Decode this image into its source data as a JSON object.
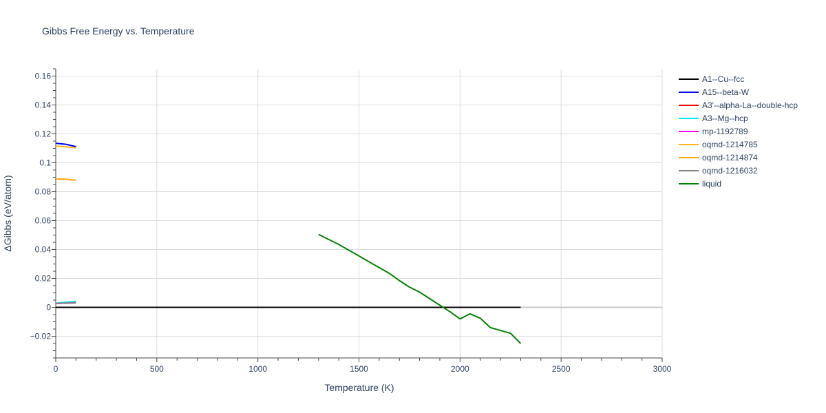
{
  "chart_data": {
    "type": "line",
    "title": "Gibbs Free Energy vs. Temperature",
    "xlabel": "Temperature (K)",
    "ylabel": "ΔGibbs (eV/atom)",
    "xlim": [
      0,
      3000
    ],
    "ylim": [
      -0.035,
      0.165
    ],
    "x_ticks": [
      0,
      500,
      1000,
      1500,
      2000,
      2500,
      3000
    ],
    "x_tick_labels": [
      "0",
      "500",
      "1000",
      "1500",
      "2000",
      "2500",
      "3000"
    ],
    "y_ticks": [
      -0.02,
      0,
      0.02,
      0.04,
      0.06,
      0.08,
      0.1,
      0.12,
      0.14,
      0.16
    ],
    "y_tick_labels": [
      "−0.02",
      "0",
      "0.02",
      "0.04",
      "0.06",
      "0.08",
      "0.1",
      "0.12",
      "0.14",
      "0.16"
    ],
    "grid": true,
    "legend_position": "right",
    "series": [
      {
        "name": "A1--Cu--fcc",
        "color": "#000000",
        "x": [
          0,
          2300
        ],
        "y": [
          0,
          0
        ]
      },
      {
        "name": "A15--beta-W",
        "color": "#0000ff",
        "x": [
          0,
          50,
          100
        ],
        "y": [
          0.1135,
          0.1128,
          0.1112
        ]
      },
      {
        "name": "A3'--alpha-La--double-hcp",
        "color": "#ff0000",
        "x": [
          0,
          50,
          100
        ],
        "y": [
          0.0028,
          0.0031,
          0.0033
        ]
      },
      {
        "name": "A3--Mg--hcp",
        "color": "#00e5ee",
        "x": [
          0,
          50,
          100
        ],
        "y": [
          0.0028,
          0.0035,
          0.0042
        ]
      },
      {
        "name": "mp-1192789",
        "color": "#ff00ff",
        "x": [
          0,
          50,
          100
        ],
        "y": [
          0.0026,
          0.0029,
          0.0031
        ]
      },
      {
        "name": "oqmd-1214785",
        "color": "#ffb319",
        "x": [
          0,
          50,
          100
        ],
        "y": [
          0.1115,
          0.1111,
          0.1104
        ]
      },
      {
        "name": "oqmd-1214874",
        "color": "#ffa500",
        "x": [
          0,
          50,
          100
        ],
        "y": [
          0.0888,
          0.0886,
          0.0879
        ]
      },
      {
        "name": "oqmd-1216032",
        "color": "#808080",
        "x": [
          0,
          50,
          100
        ],
        "y": [
          0.0027,
          0.0029,
          0.0031
        ]
      },
      {
        "name": "liquid",
        "color": "#008000",
        "x": [
          1300,
          1400,
          1500,
          1550,
          1600,
          1650,
          1700,
          1750,
          1800,
          1850,
          1900,
          1950,
          2000,
          2050,
          2100,
          2150,
          2200,
          2250,
          2300
        ],
        "y": [
          0.0505,
          0.0435,
          0.0355,
          0.0315,
          0.0275,
          0.0235,
          0.0185,
          0.014,
          0.0105,
          0.006,
          0.0015,
          -0.003,
          -0.008,
          -0.0045,
          -0.0075,
          -0.014,
          -0.016,
          -0.018,
          -0.025
        ]
      }
    ]
  }
}
